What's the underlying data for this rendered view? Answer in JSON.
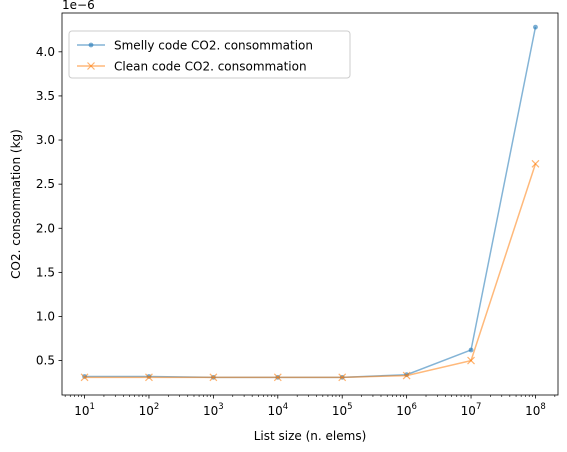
{
  "chart_data": {
    "type": "line",
    "xlabel": "List size (n. elems)",
    "ylabel": "CO2. consommation (kg)",
    "xscale": "log",
    "x": [
      10,
      100,
      1000,
      10000,
      100000,
      1000000,
      10000000,
      100000000
    ],
    "x_tick_labels": [
      {
        "base": "10",
        "exp": "1"
      },
      {
        "base": "10",
        "exp": "2"
      },
      {
        "base": "10",
        "exp": "3"
      },
      {
        "base": "10",
        "exp": "4"
      },
      {
        "base": "10",
        "exp": "5"
      },
      {
        "base": "10",
        "exp": "6"
      },
      {
        "base": "10",
        "exp": "7"
      },
      {
        "base": "10",
        "exp": "8"
      }
    ],
    "y_scale_label": "1e−6",
    "y_ticks": [
      0.5,
      1.0,
      1.5,
      2.0,
      2.5,
      3.0,
      3.5,
      4.0
    ],
    "y_tick_labels": [
      "0.5",
      "1.0",
      "1.5",
      "2.0",
      "2.5",
      "3.0",
      "3.5",
      "4.0"
    ],
    "ylim": [
      0.11,
      4.44
    ],
    "grid": false,
    "legend_position": "top-left",
    "series": [
      {
        "name": "Smelly code CO2. consommation",
        "color": "#1f77b4",
        "marker": "dot",
        "values": [
          0.32,
          0.32,
          0.31,
          0.31,
          0.31,
          0.34,
          0.62,
          4.28
        ]
      },
      {
        "name": "Clean code CO2. consommation",
        "color": "#ff7f0e",
        "marker": "x",
        "values": [
          0.31,
          0.31,
          0.31,
          0.31,
          0.31,
          0.33,
          0.5,
          2.73
        ]
      }
    ]
  }
}
